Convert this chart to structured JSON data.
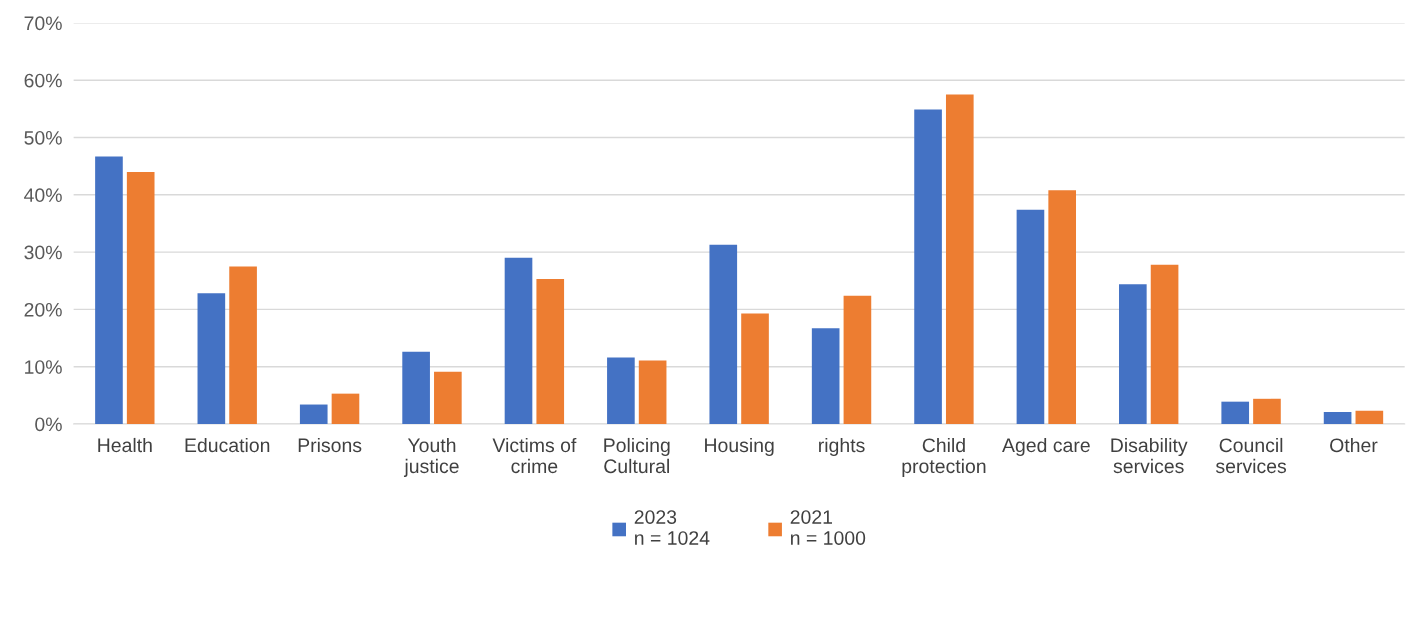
{
  "chart_data": {
    "type": "bar",
    "categories": [
      "Health",
      "Education",
      "Prisons",
      "Youth\njustice",
      "Victims of\ncrime",
      "Policing\nCultural",
      "Housing",
      "rights",
      "Child\nprotection",
      "Aged care",
      "Disability\nservices",
      "Council\nservices",
      "Other"
    ],
    "series": [
      {
        "name": "2023\nn = 1024",
        "color": "#4472c4",
        "values": [
          46.7,
          22.8,
          3.4,
          12.6,
          29.0,
          11.6,
          31.3,
          16.7,
          54.9,
          37.4,
          24.4,
          3.9,
          2.1
        ]
      },
      {
        "name": "2021\nn = 1000",
        "color": "#ed7d31",
        "values": [
          44.0,
          27.5,
          5.3,
          9.1,
          25.3,
          11.1,
          19.3,
          22.4,
          57.5,
          40.8,
          27.8,
          4.4,
          2.3
        ]
      }
    ],
    "ylim": [
      0,
      70
    ],
    "yticks": [
      {
        "value": 0,
        "label": "0%"
      },
      {
        "value": 10,
        "label": "10%"
      },
      {
        "value": 20,
        "label": "20%"
      },
      {
        "value": 30,
        "label": "30%"
      },
      {
        "value": 40,
        "label": "40%"
      },
      {
        "value": 50,
        "label": "50%"
      },
      {
        "value": 60,
        "label": "60%"
      },
      {
        "value": 70,
        "label": "70%"
      }
    ],
    "grid": "y",
    "legend": "bottom"
  }
}
